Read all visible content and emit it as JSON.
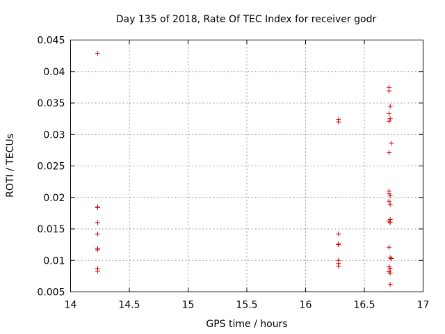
{
  "chart_data": {
    "type": "scatter",
    "title": "Day 135 of 2018, Rate Of TEC Index for receiver godr",
    "xlabel": "GPS time / hours",
    "ylabel": "ROTI / TECUs",
    "xlim": [
      14,
      17
    ],
    "ylim": [
      0.005,
      0.045
    ],
    "xticks": [
      14,
      14.5,
      15,
      15.5,
      16,
      16.5,
      17
    ],
    "xtick_labels": [
      "14",
      "14.5",
      "15",
      "15.5",
      "16",
      "16.5",
      "17"
    ],
    "yticks": [
      0.005,
      0.01,
      0.015,
      0.02,
      0.025,
      0.03,
      0.035,
      0.04,
      0.045
    ],
    "ytick_labels": [
      "0.005",
      "0.01",
      "0.015",
      "0.02",
      "0.025",
      "0.03",
      "0.035",
      "0.04",
      "0.045"
    ],
    "grid": true,
    "marker": "+",
    "color": "#cc0000",
    "series": [
      {
        "name": "godr",
        "points": [
          [
            14.23,
            0.0429
          ],
          [
            14.23,
            0.0185
          ],
          [
            14.23,
            0.0184
          ],
          [
            14.23,
            0.016
          ],
          [
            14.23,
            0.0142
          ],
          [
            14.23,
            0.0119
          ],
          [
            14.23,
            0.0117
          ],
          [
            14.23,
            0.0087
          ],
          [
            14.23,
            0.0083
          ],
          [
            16.28,
            0.0324
          ],
          [
            16.28,
            0.032
          ],
          [
            16.28,
            0.0142
          ],
          [
            16.28,
            0.0126
          ],
          [
            16.28,
            0.0125
          ],
          [
            16.28,
            0.01
          ],
          [
            16.28,
            0.0095
          ],
          [
            16.28,
            0.0091
          ],
          [
            16.71,
            0.0375
          ],
          [
            16.71,
            0.0369
          ],
          [
            16.72,
            0.0345
          ],
          [
            16.71,
            0.0333
          ],
          [
            16.72,
            0.0325
          ],
          [
            16.71,
            0.0321
          ],
          [
            16.73,
            0.0286
          ],
          [
            16.71,
            0.0271
          ],
          [
            16.71,
            0.021
          ],
          [
            16.71,
            0.0206
          ],
          [
            16.72,
            0.0203
          ],
          [
            16.71,
            0.0194
          ],
          [
            16.72,
            0.0189
          ],
          [
            16.72,
            0.0165
          ],
          [
            16.71,
            0.0162
          ],
          [
            16.72,
            0.016
          ],
          [
            16.71,
            0.0121
          ],
          [
            16.72,
            0.0104
          ],
          [
            16.73,
            0.0103
          ],
          [
            16.71,
            0.009
          ],
          [
            16.72,
            0.0087
          ],
          [
            16.71,
            0.0082
          ],
          [
            16.72,
            0.008
          ],
          [
            16.72,
            0.0062
          ]
        ]
      }
    ]
  }
}
